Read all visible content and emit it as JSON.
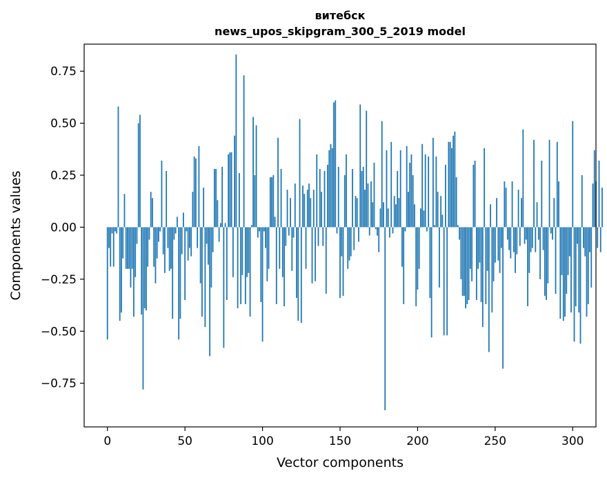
{
  "chart_data": {
    "type": "bar",
    "title": "витебск",
    "subtitle": "news_upos_skipgram_300_5_2019 model",
    "xlabel": "Vector components",
    "ylabel": "Components values",
    "xlim": [
      -15,
      315
    ],
    "ylim": [
      -0.96,
      0.88
    ],
    "xticks": [
      0,
      50,
      100,
      150,
      200,
      250,
      300
    ],
    "xtick_labels": [
      "0",
      "50",
      "100",
      "150",
      "200",
      "250",
      "300"
    ],
    "yticks": [
      -0.75,
      -0.5,
      -0.25,
      0.0,
      0.25,
      0.5,
      0.75
    ],
    "ytick_labels": [
      "−0.75",
      "−0.50",
      "−0.25",
      "0.00",
      "0.25",
      "0.50",
      "0.75"
    ],
    "color": "#1f77b4",
    "values": [
      -0.54,
      -0.1,
      -0.19,
      -0.03,
      -0.19,
      -0.02,
      -0.03,
      0.58,
      -0.45,
      -0.41,
      -0.15,
      0.16,
      -0.2,
      -0.2,
      -0.2,
      -0.29,
      -0.2,
      -0.43,
      -0.24,
      -0.08,
      0.5,
      0.54,
      -0.42,
      -0.78,
      -0.39,
      -0.4,
      -0.19,
      -0.06,
      0.17,
      0.14,
      -0.19,
      -0.27,
      -0.15,
      -0.07,
      -0.02,
      0.32,
      -0.13,
      -0.22,
      0.27,
      -0.1,
      -0.21,
      -0.2,
      -0.44,
      -0.06,
      -0.03,
      0.05,
      -0.54,
      -0.44,
      -0.13,
      0.07,
      -0.35,
      -0.02,
      -0.16,
      -0.1,
      -0.14,
      0.17,
      0.34,
      0.33,
      -0.1,
      0.39,
      -0.27,
      -0.43,
      0.19,
      -0.48,
      -0.08,
      -0.18,
      -0.62,
      -0.29,
      -0.12,
      0.28,
      0.28,
      0.13,
      -0.07,
      0.02,
      0.29,
      -0.58,
      0.02,
      -0.35,
      0.35,
      0.36,
      0.36,
      -0.24,
      0.44,
      0.83,
      -0.39,
      0.26,
      -0.37,
      -0.23,
      0.73,
      -0.37,
      -0.24,
      -0.22,
      -0.43,
      0.01,
      0.53,
      0.25,
      0.49,
      -0.05,
      -0.02,
      -0.36,
      -0.55,
      -0.02,
      -0.1,
      -0.26,
      -0.2,
      0.24,
      0.24,
      0.25,
      0.05,
      -0.37,
      0.43,
      -0.2,
      0.28,
      -0.24,
      -0.38,
      -0.09,
      0.18,
      -0.04,
      0.14,
      -0.21,
      -0.05,
      0.21,
      -0.34,
      -0.45,
      0.52,
      -0.46,
      0.2,
      0.16,
      -0.2,
      0.18,
      0.21,
      0.14,
      -0.27,
      0.18,
      -0.26,
      0.35,
      -0.09,
      0.28,
      0.17,
      -0.09,
      0.27,
      -0.32,
      0.3,
      0.37,
      0.4,
      0.38,
      0.6,
      0.61,
      -0.03,
      0.29,
      -0.34,
      -0.14,
      -0.33,
      0.25,
      0.35,
      -0.2,
      -0.16,
      -0.14,
      0.28,
      -0.11,
      0.15,
      0.14,
      -0.07,
      0.59,
      0.27,
      0.29,
      0.18,
      0.56,
      0.21,
      -0.04,
      0.22,
      0.12,
      0.31,
      -0.01,
      -0.04,
      -0.12,
      0.09,
      0.51,
      0.12,
      -0.88,
      0.37,
      0.09,
      -0.05,
      0.41,
      -0.03,
      0.15,
      0.11,
      0.27,
      0.14,
      0.37,
      -0.19,
      -0.37,
      -0.02,
      0.39,
      0.17,
      0.31,
      0.35,
      0.25,
      0.11,
      -0.38,
      -0.3,
      -0.2,
      0.09,
      0.4,
      0.08,
      0.35,
      -0.02,
      0.34,
      -0.34,
      -0.53,
      0.43,
      0.01,
      0.34,
      0.17,
      -0.29,
      0.15,
      0.06,
      -0.52,
      0.3,
      -0.52,
      0.41,
      0.41,
      0.38,
      0.44,
      0.46,
      0.24,
      0.01,
      -0.06,
      -0.25,
      -0.33,
      -0.33,
      -0.39,
      -0.37,
      -0.35,
      -0.2,
      -0.26,
      0.3,
      0.32,
      -0.35,
      -0.2,
      -0.17,
      -0.36,
      -0.48,
      0.38,
      -0.37,
      -0.21,
      -0.6,
      0.11,
      -0.41,
      -0.26,
      -0.17,
      0.14,
      -0.16,
      -0.22,
      -0.1,
      -0.68,
      0.22,
      0.19,
      -0.06,
      -0.11,
      -0.15,
      0.22,
      -0.12,
      -0.22,
      -0.13,
      0.18,
      -0.09,
      0.14,
      0.47,
      -0.08,
      -0.06,
      -0.38,
      -0.22,
      -0.12,
      -0.1,
      0.42,
      -0.12,
      0.12,
      -0.06,
      -0.25,
      0.32,
      -0.11,
      -0.33,
      -0.35,
      -0.27,
      0.42,
      -0.03,
      -0.06,
      0.14,
      -0.32,
      0.41,
      0.22,
      -0.44,
      -0.23,
      -0.45,
      -0.43,
      -0.32,
      -0.23,
      -0.14,
      -0.41,
      0.51,
      -0.55,
      -0.38,
      -0.08,
      -0.41,
      -0.56,
      0.25,
      -0.1,
      -0.14,
      -0.43,
      -0.37,
      -0.12,
      -0.29,
      0.21,
      0.37,
      0.22,
      -0.1,
      0.32,
      -0.12,
      0.19
    ]
  }
}
